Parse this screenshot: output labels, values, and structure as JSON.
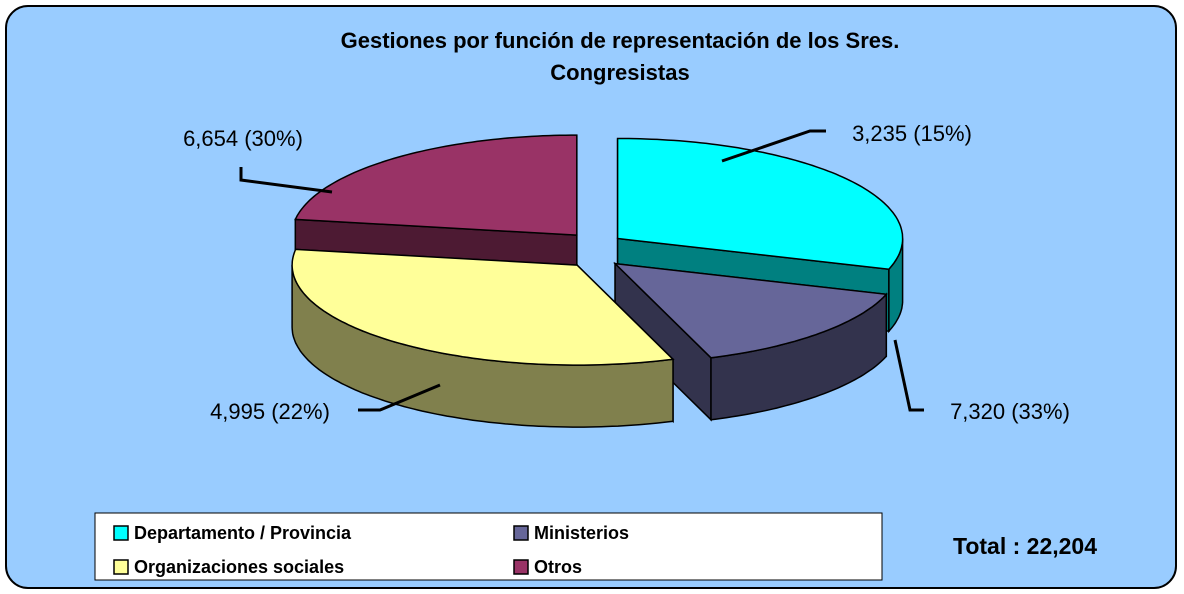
{
  "chart_data": {
    "type": "pie3d",
    "title": [
      "Gestiones por función de representación de los Sres.",
      "Congresistas"
    ],
    "categories": [
      "Departamento / Provincia",
      "Ministerios",
      "Organizaciones sociales",
      "Otros"
    ],
    "values": [
      6654,
      3235,
      7320,
      4995
    ],
    "value_labels": [
      "6,654 (30%)",
      "3,235 (15%)",
      "7,320 (33%)",
      "4,995 (22%)"
    ],
    "colors": [
      "#00ffff",
      "#666699",
      "#ffff99",
      "#993366"
    ],
    "annotation": "Total : 22,204",
    "legend": "bottom"
  }
}
